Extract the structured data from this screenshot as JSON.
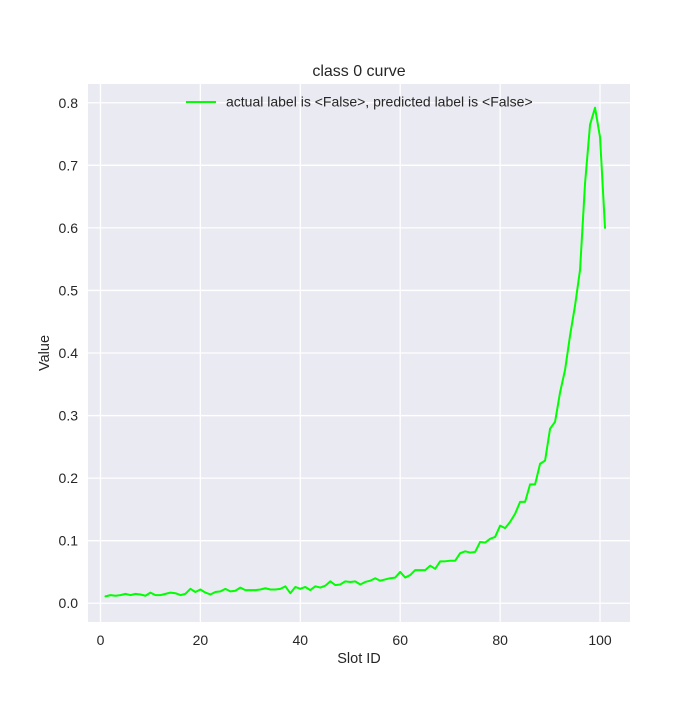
{
  "chart_data": {
    "type": "line",
    "title": "class 0 curve",
    "xlabel": "Slot ID",
    "ylabel": "Value",
    "xlim": [
      -2.5,
      106
    ],
    "ylim": [
      -0.03,
      0.83
    ],
    "xticks": [
      0,
      20,
      40,
      60,
      80,
      100
    ],
    "xtick_labels": [
      "0",
      "20",
      "40",
      "60",
      "80",
      "100"
    ],
    "yticks": [
      0.0,
      0.1,
      0.2,
      0.3,
      0.4,
      0.5,
      0.6,
      0.7,
      0.8
    ],
    "ytick_labels": [
      "0.0",
      "0.1",
      "0.2",
      "0.3",
      "0.4",
      "0.5",
      "0.6",
      "0.7",
      "0.8"
    ],
    "grid": true,
    "legend_position": "top-center",
    "series": [
      {
        "name": "actual label is <False>, predicted label is <False>",
        "color": "#00ff00",
        "x": [
          1,
          2,
          3,
          4,
          5,
          6,
          7,
          8,
          9,
          10,
          11,
          12,
          13,
          14,
          15,
          16,
          17,
          18,
          19,
          20,
          21,
          22,
          23,
          24,
          25,
          26,
          27,
          28,
          29,
          30,
          31,
          32,
          33,
          34,
          35,
          36,
          37,
          38,
          39,
          40,
          41,
          42,
          43,
          44,
          45,
          46,
          47,
          48,
          49,
          50,
          51,
          52,
          53,
          54,
          55,
          56,
          57,
          58,
          59,
          60,
          61,
          62,
          63,
          64,
          65,
          66,
          67,
          68,
          69,
          70,
          71,
          72,
          73,
          74,
          75,
          76,
          77,
          78,
          79,
          80,
          81,
          82,
          83,
          84,
          85,
          86,
          87,
          88,
          89,
          90,
          91,
          92,
          93,
          94,
          95,
          96,
          97,
          98,
          99,
          100,
          101
        ],
        "y": [
          0.011,
          0.013,
          0.012,
          0.013,
          0.015,
          0.013,
          0.015,
          0.014,
          0.012,
          0.017,
          0.013,
          0.013,
          0.015,
          0.017,
          0.016,
          0.013,
          0.015,
          0.023,
          0.018,
          0.022,
          0.017,
          0.014,
          0.018,
          0.019,
          0.023,
          0.019,
          0.02,
          0.025,
          0.021,
          0.021,
          0.021,
          0.022,
          0.024,
          0.022,
          0.022,
          0.023,
          0.027,
          0.016,
          0.026,
          0.023,
          0.026,
          0.021,
          0.027,
          0.025,
          0.028,
          0.035,
          0.029,
          0.03,
          0.035,
          0.034,
          0.035,
          0.03,
          0.034,
          0.036,
          0.04,
          0.036,
          0.038,
          0.04,
          0.041,
          0.05,
          0.041,
          0.045,
          0.053,
          0.053,
          0.053,
          0.06,
          0.055,
          0.067,
          0.067,
          0.068,
          0.068,
          0.08,
          0.083,
          0.081,
          0.082,
          0.098,
          0.097,
          0.103,
          0.106,
          0.124,
          0.12,
          0.13,
          0.143,
          0.162,
          0.162,
          0.19,
          0.19,
          0.223,
          0.228,
          0.279,
          0.29,
          0.337,
          0.373,
          0.428,
          0.476,
          0.533,
          0.671,
          0.765,
          0.792,
          0.745,
          0.6
        ]
      }
    ]
  }
}
